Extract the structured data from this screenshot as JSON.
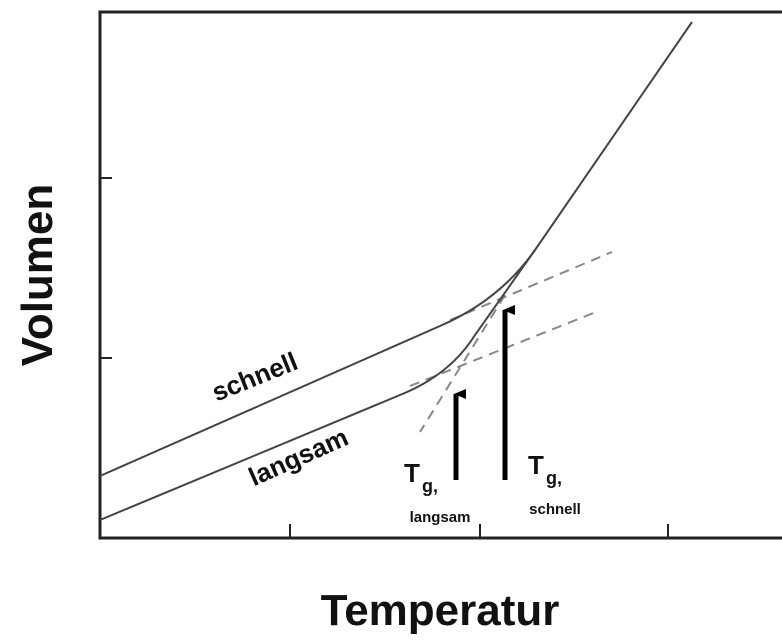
{
  "axes": {
    "y_label": "Volumen",
    "x_label": "Temperatur"
  },
  "curves": [
    {
      "label": "schnell"
    },
    {
      "label": "langsam"
    }
  ],
  "annotations": [
    {
      "symbol": "T",
      "subscript": "g,",
      "label": "langsam"
    },
    {
      "symbol": "T",
      "subscript": "g,",
      "label": "schnell"
    }
  ]
}
